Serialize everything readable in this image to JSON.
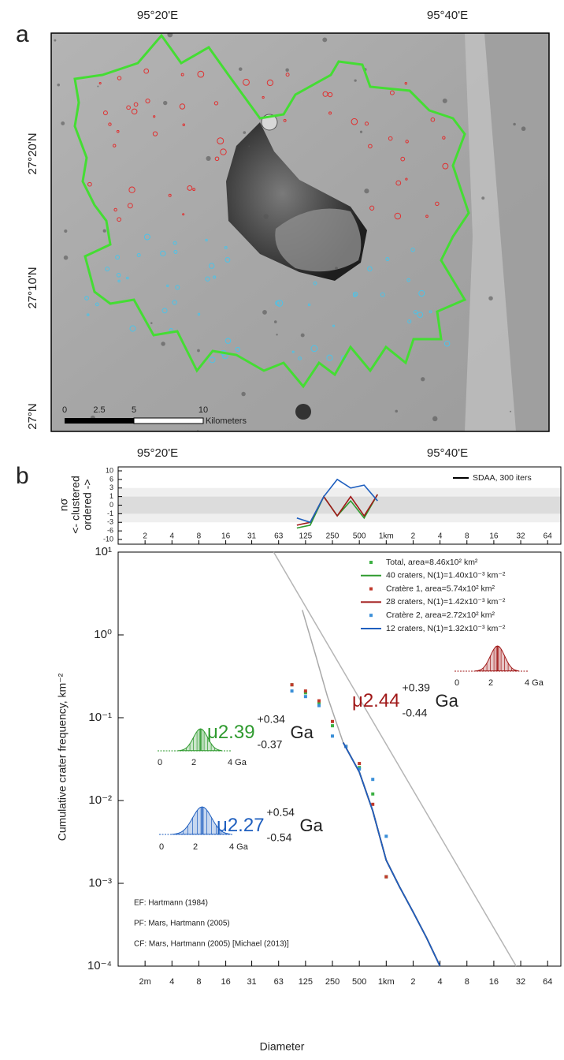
{
  "panel_labels": [
    "a",
    "b"
  ],
  "map": {
    "top_labels": [
      "95°20'E",
      "95°40'E"
    ],
    "bottom_labels": [
      "95°20'E",
      "95°40'E"
    ],
    "left_labels": [
      "27°20'N",
      "27°10'N",
      "27°N"
    ],
    "scale_labels": [
      "0",
      "2.5",
      "5",
      "10"
    ],
    "scale_unit": "Kilometers"
  },
  "chart_data": [
    {
      "type": "line",
      "y_label": [
        "nσ",
        "<- clustered",
        "ordered ->"
      ],
      "legend_label": "SDAA, 300 iters",
      "log_x": true,
      "xlim": [
        1,
        90000
      ],
      "ylim": [
        -10,
        10
      ],
      "xticks": [
        2,
        4,
        8,
        16,
        {
          "value": 31.25,
          "label": "31"
        },
        {
          "value": 62.5,
          "label": "63"
        },
        125,
        250,
        500,
        {
          "value": 1000,
          "label": "1km"
        },
        {
          "value": 2000,
          "label": "2"
        },
        {
          "value": 4000,
          "label": "4"
        },
        {
          "value": 8000,
          "label": "8"
        },
        {
          "value": 16000,
          "label": "16"
        },
        {
          "value": 32000,
          "label": "32"
        },
        {
          "value": 64000,
          "label": "64"
        }
      ],
      "yticks": [
        10,
        6,
        3,
        1,
        0,
        -1,
        -3,
        -6,
        -10
      ],
      "bands": [
        [
          -3,
          3
        ],
        [
          -1,
          1
        ]
      ],
      "series": [
        {
          "color": "#2e9a2e",
          "x": [
            100,
            141,
            200,
            283,
            400,
            566,
            800
          ],
          "values": [
            -5,
            -4,
            1,
            -1.5,
            0.5,
            -2,
            1.5
          ]
        },
        {
          "color": "#a01818",
          "x": [
            100,
            141,
            200,
            283,
            400,
            566,
            800
          ],
          "values": [
            -4,
            -3,
            1,
            -1.5,
            1,
            -1.5,
            1.5
          ]
        },
        {
          "color": "#1f5fbf",
          "x": [
            100,
            141,
            200,
            283,
            400,
            566,
            800
          ],
          "values": [
            -2,
            -3,
            1,
            6,
            3,
            4,
            0.5
          ]
        }
      ]
    },
    {
      "type": "line",
      "x_label": "Diameter",
      "y_label": "Cumulative crater frequency, km⁻²",
      "log_x": true,
      "log_y": true,
      "xlim": [
        1,
        90000
      ],
      "ylim": [
        0.0001,
        10
      ],
      "xticks": [
        {
          "value": 2,
          "label": "2m"
        },
        4,
        8,
        16,
        {
          "value": 31.25,
          "label": "31"
        },
        {
          "value": 62.5,
          "label": "63"
        },
        125,
        250,
        500,
        {
          "value": 1000,
          "label": "1km"
        },
        {
          "value": 2000,
          "label": "2"
        },
        {
          "value": 4000,
          "label": "4"
        },
        {
          "value": 8000,
          "label": "8"
        },
        {
          "value": 16000,
          "label": "16"
        },
        {
          "value": 32000,
          "label": "32"
        },
        {
          "value": 64000,
          "label": "64"
        }
      ],
      "yticks": [
        {
          "value": 10,
          "label": "10¹"
        },
        {
          "value": 1,
          "label": "10⁰"
        },
        {
          "value": 0.1,
          "label": "10⁻¹"
        },
        {
          "value": 0.01,
          "label": "10⁻²"
        },
        {
          "value": 0.001,
          "label": "10⁻³"
        },
        {
          "value": 0.0001,
          "label": "10⁻⁴"
        }
      ],
      "series": [
        {
          "mark": "line",
          "color": "#b5b5b5",
          "x": [
            55,
            28500
          ],
          "values": [
            10,
            0.0001
          ]
        },
        {
          "mark": "line",
          "color": "#a8a8a8",
          "x": [
            115,
            160,
            220,
            330
          ],
          "values": [
            2.0,
            0.6,
            0.18,
            0.05
          ]
        },
        {
          "name": "Total, area=8.46x10² km²",
          "mark": "point",
          "color": "#3cb043",
          "x": [
            88,
            125,
            177,
            250,
            354,
            500,
            707,
            1000
          ],
          "values": [
            0.25,
            0.2,
            0.15,
            0.08,
            0.045,
            0.025,
            0.012,
            0.0012
          ]
        },
        {
          "name": "40 craters, N(1)=1.40x10⁻³ km⁻²",
          "mark": "line",
          "color": "#2e9a2e",
          "x": [
            330,
            500,
            707,
            1000,
            1414,
            2000,
            2828,
            4000
          ],
          "values": [
            0.05,
            0.022,
            0.0075,
            0.0019,
            0.0009,
            0.00045,
            0.00022,
            0.0001
          ]
        },
        {
          "name": "Cratère 1, area=5.74x10² km²",
          "mark": "point",
          "color": "#c0392b",
          "x": [
            88,
            125,
            177,
            250,
            354,
            500,
            707,
            1000
          ],
          "values": [
            0.25,
            0.21,
            0.16,
            0.09,
            0.045,
            0.028,
            0.009,
            0.0012
          ]
        },
        {
          "name": "28 craters, N(1)=1.42x10⁻³ km⁻²",
          "mark": "line",
          "color": "#a01818",
          "x": [
            330,
            500,
            707,
            1000,
            1414,
            2000,
            2828,
            4000
          ],
          "values": [
            0.05,
            0.022,
            0.0075,
            0.0019,
            0.0009,
            0.00045,
            0.00022,
            0.0001
          ]
        },
        {
          "name": "Cratère 2, area=2.72x10² km²",
          "mark": "point",
          "color": "#3a8fd8",
          "x": [
            88,
            125,
            177,
            250,
            354,
            500,
            707,
            1000
          ],
          "values": [
            0.21,
            0.18,
            0.14,
            0.06,
            0.045,
            0.024,
            0.018,
            0.0037
          ]
        },
        {
          "name": "12 craters, N(1)=1.32x10⁻³ km⁻²",
          "mark": "line",
          "color": "#1f5fbf",
          "x": [
            330,
            500,
            707,
            1000,
            1414,
            2000,
            2828,
            4000
          ],
          "values": [
            0.05,
            0.022,
            0.0075,
            0.0019,
            0.0009,
            0.00045,
            0.00022,
            0.0001
          ]
        }
      ],
      "annotations": [
        {
          "text": "μ2.39",
          "plus": "+0.34",
          "minus": "-0.37",
          "unit": "Ga",
          "color": "#2e9a2e",
          "axis_labels": [
            "0",
            "2",
            "4 Ga"
          ]
        },
        {
          "text": "μ2.27",
          "plus": "+0.54",
          "minus": "-0.54",
          "unit": "Ga",
          "color": "#1f5fbf",
          "axis_labels": [
            "0",
            "2",
            "4 Ga"
          ]
        },
        {
          "text": "μ2.44",
          "plus": "+0.39",
          "minus": "-0.44",
          "unit": "Ga",
          "color": "#a01818",
          "axis_labels": [
            "0",
            "2",
            "4 Ga"
          ]
        }
      ],
      "references": [
        "EF: Hartmann (1984)",
        "PF: Mars, Hartmann (2005)",
        "CF: Mars, Hartmann (2005) [Michael (2013)]"
      ]
    }
  ]
}
